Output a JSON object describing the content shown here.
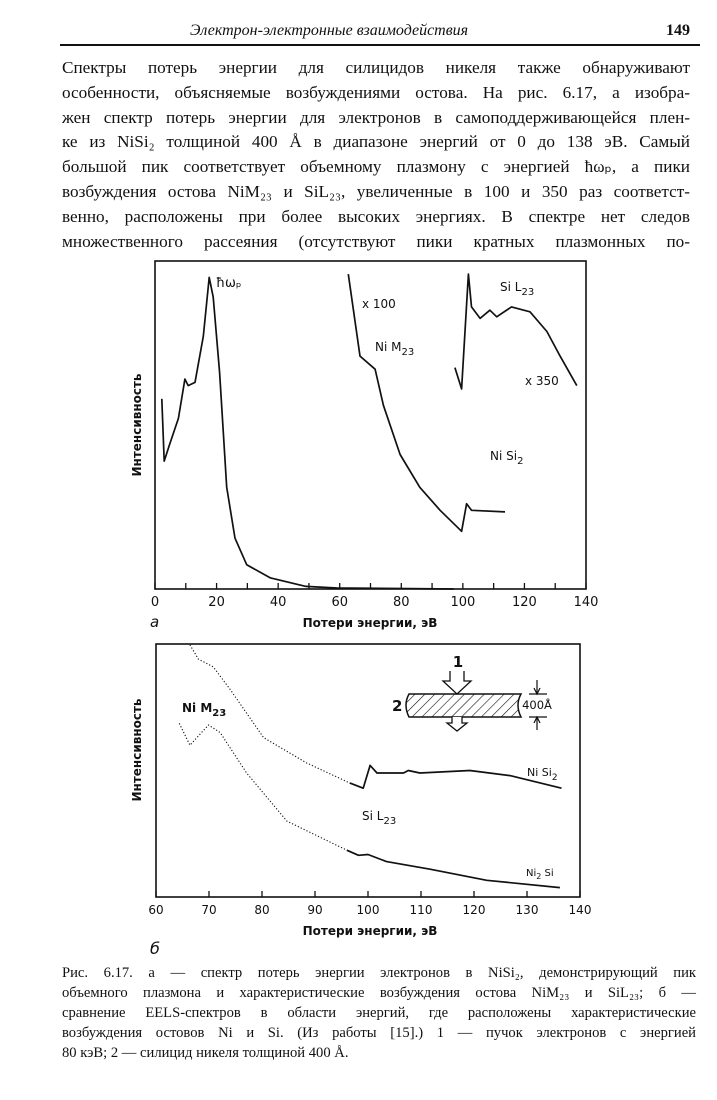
{
  "header": {
    "title": "Электрон-электронные взаимодействия",
    "page_number": "149"
  },
  "paragraph": {
    "lines": [
      "Спектры потерь энергии для силицидов никеля также обнаруживают",
      "особенности, объясняемые возбуждениями остова. На рис. 6.17, а изобра-",
      "жен спектр потерь энергии для электронов в самоподдерживающейся плен-",
      "ке из NiSi₂  толщиной 400 Å в диапазоне энергий от 0 до 138 эВ. Самый",
      "большой пик соответствует объемному плазмону с энергией ħωₚ, а пики",
      "возбуждения остова NiM₂₃ и SiL₂₃, увеличенные в 100 и 350 раз соответст-",
      "венно, расположены при более высоких энергиях. В спектре нет следов",
      "множественного рассеяния (отсутствуют пики кратных плазмонных по-"
    ]
  },
  "caption": {
    "lines": [
      "Рис. 6.17. а — спектр потерь энергии электронов в NiSi₂, демонстрирующий пик",
      "объемного плазмона и характеристические возбуждения остова NiM₂₃ и SiL₂₃; б —",
      "сравнение EELS-спектров в области энергий, где расположены характеристические",
      "возбуждения остовов Ni и Si. (Из работы [15].) 1 — пучок электронов с энергией",
      "80 кэВ; 2 — силицид никеля толщиной 400 Å."
    ]
  },
  "chart_data": [
    {
      "type": "line",
      "panel_label": "а",
      "xlabel": "Потери энергии, эВ",
      "ylabel": "Интенсивность",
      "xlim": [
        0,
        140
      ],
      "ylim": [
        0,
        1
      ],
      "xticks": [
        "0",
        "20",
        "40",
        "60",
        "80",
        "100",
        "120",
        "140"
      ],
      "xtick_values": [
        0,
        20,
        40,
        60,
        80,
        100,
        120,
        140
      ],
      "minor_tick_step": 10,
      "annotations": {
        "plasmon": "ħωₚ",
        "x100": "x 100",
        "ni_m23": "Ni M",
        "ni_m23_sub": "23",
        "si_l23": "Si L",
        "si_l23_sub": "23",
        "x350": "x 350",
        "nisi2": "Ni Si",
        "nisi2_sub": "2"
      },
      "series": [
        {
          "name": "NiSi2 spectrum",
          "x": [
            2.2,
            3,
            4.7,
            7.6,
            9.7,
            10.8,
            13,
            15.7,
            17.6,
            18.9,
            21,
            23.3,
            26,
            29.8,
            37.4,
            49,
            59,
            97
          ],
          "y": [
            0.58,
            0.39,
            0.44,
            0.52,
            0.64,
            0.62,
            0.63,
            0.77,
            0.95,
            0.89,
            0.66,
            0.31,
            0.155,
            0.074,
            0.034,
            0.008,
            0.003,
            0
          ]
        },
        {
          "name": "Ni M23 x100",
          "x": [
            62.8,
            66.6,
            71.5,
            74.2,
            79.6,
            86,
            92.6,
            99.6,
            101.2,
            102.8,
            113.7
          ],
          "y": [
            0.96,
            0.71,
            0.67,
            0.56,
            0.41,
            0.31,
            0.24,
            0.176,
            0.26,
            0.24,
            0.235
          ]
        },
        {
          "name": "Si L23 x350",
          "x": [
            97.4,
            99.6,
            101.8,
            102.8,
            105.6,
            108.8,
            111,
            115.8,
            121.8,
            127.3,
            131.6,
            137
          ],
          "y": [
            0.675,
            0.61,
            0.96,
            0.86,
            0.825,
            0.85,
            0.83,
            0.86,
            0.845,
            0.785,
            0.71,
            0.62
          ]
        }
      ]
    },
    {
      "type": "line",
      "panel_label": "б",
      "xlabel": "Потери энергии, эВ",
      "ylabel": "Интенсивность",
      "xlim": [
        60,
        140
      ],
      "ylim": [
        0,
        1
      ],
      "xticks": [
        "60",
        "70",
        "80",
        "90",
        "100",
        "110",
        "120",
        "130",
        "140"
      ],
      "xtick_values": [
        60,
        70,
        80,
        90,
        100,
        110,
        120,
        130,
        140
      ],
      "annotations": {
        "ni_m23": "Ni M",
        "ni_m23_sub": "23",
        "si_l23": "Si L",
        "si_l23_sub": "23",
        "nisi2": "Ni Si",
        "nisi2_sub": "2",
        "ni2si_a": "Ni",
        "ni2si_sub": "2",
        "ni2si_b": " Si",
        "inset_beam": "1",
        "inset_film": "2",
        "inset_thickness": "400Å"
      },
      "series": [
        {
          "name": "NiSi2 (dotted)",
          "style": "dotted",
          "x": [
            66.4,
            68,
            70.8,
            74,
            80.3,
            88.4,
            96.6,
            99.1
          ],
          "y": [
            0.997,
            0.94,
            0.91,
            0.82,
            0.63,
            0.53,
            0.45,
            0.43
          ]
        },
        {
          "name": "NiSi2",
          "style": "solid",
          "x": [
            96.6,
            99.1,
            100.4,
            101.7,
            106.7,
            107.6,
            109.8,
            119.2,
            126.8,
            136.5
          ],
          "y": [
            0.45,
            0.43,
            0.52,
            0.49,
            0.49,
            0.5,
            0.49,
            0.5,
            0.48,
            0.43
          ]
        },
        {
          "name": "Ni2Si (dotted)",
          "style": "dotted",
          "x": [
            64.4,
            66.4,
            69.9,
            72.1,
            77.1,
            84.7,
            96
          ],
          "y": [
            0.686,
            0.6,
            0.68,
            0.65,
            0.49,
            0.3,
            0.185
          ]
        },
        {
          "name": "Ni2Si",
          "style": "solid",
          "x": [
            96,
            98.2,
            100,
            103.5,
            111.7,
            122.4,
            136.2
          ],
          "y": [
            0.185,
            0.165,
            0.168,
            0.14,
            0.11,
            0.066,
            0.037
          ]
        }
      ]
    }
  ]
}
